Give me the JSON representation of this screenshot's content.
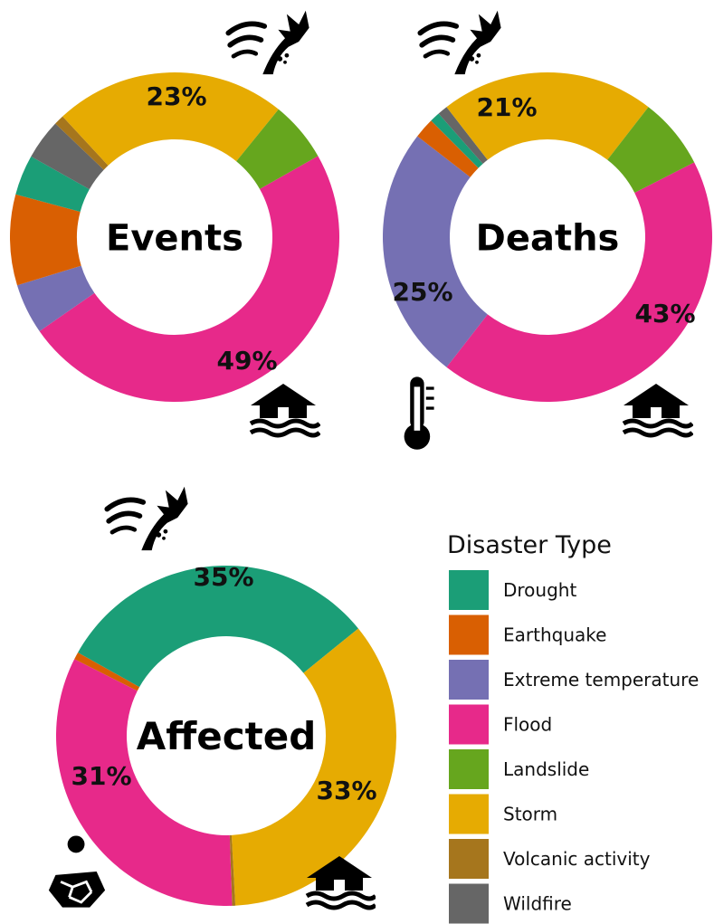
{
  "legend": {
    "title": "Disaster Type",
    "items": [
      {
        "name": "Drought",
        "color": "#1b9e77"
      },
      {
        "name": "Earthquake",
        "color": "#d95f02"
      },
      {
        "name": "Extreme temperature",
        "color": "#7570b3"
      },
      {
        "name": "Flood",
        "color": "#e7298a"
      },
      {
        "name": "Landslide",
        "color": "#66a61e"
      },
      {
        "name": "Storm",
        "color": "#e6ab02"
      },
      {
        "name": "Volcanic activity",
        "color": "#a6761d"
      },
      {
        "name": "Wildfire",
        "color": "#666666"
      }
    ]
  },
  "chart_data": [
    {
      "type": "pie",
      "title": "Events",
      "categories": [
        "Flood",
        "Extreme temperature",
        "Earthquake",
        "Drought",
        "Wildfire",
        "Volcanic activity",
        "Storm",
        "Landslide"
      ],
      "values": [
        49,
        5,
        9,
        4,
        4,
        1,
        23,
        6
      ],
      "labels": [
        {
          "category": "Storm",
          "text": "23%"
        },
        {
          "category": "Flood",
          "text": "49%"
        }
      ],
      "icons": [
        "storm-icon",
        "flood-icon"
      ]
    },
    {
      "type": "pie",
      "title": "Deaths",
      "categories": [
        "Flood",
        "Extreme temperature",
        "Earthquake",
        "Drought",
        "Wildfire",
        "Storm",
        "Landslide"
      ],
      "values": [
        43,
        25,
        2,
        1,
        1,
        21,
        7
      ],
      "labels": [
        {
          "category": "Storm",
          "text": "21%"
        },
        {
          "category": "Extreme temperature",
          "text": "25%"
        },
        {
          "category": "Flood",
          "text": "43%"
        }
      ],
      "icons": [
        "storm-icon",
        "thermometer-icon",
        "flood-icon"
      ]
    },
    {
      "type": "pie",
      "title": "Affected",
      "categories": [
        "Flood",
        "Earthquake",
        "Drought",
        "Storm",
        "Volcanic activity"
      ],
      "values": [
        33,
        0.7,
        31,
        35,
        0.3
      ],
      "labels": [
        {
          "category": "Storm",
          "text": "35%"
        },
        {
          "category": "Drought",
          "text": "31%"
        },
        {
          "category": "Flood",
          "text": "33%"
        }
      ],
      "icons": [
        "storm-icon",
        "drought-icon",
        "flood-icon"
      ]
    }
  ]
}
